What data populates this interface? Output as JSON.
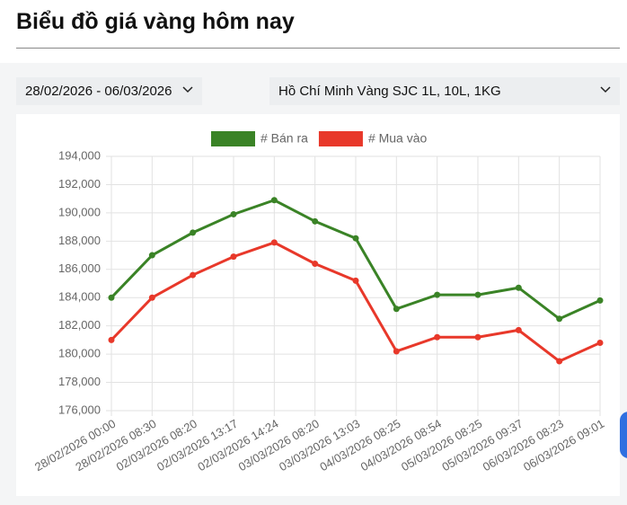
{
  "header": {
    "title": "Biểu đồ giá vàng hôm nay"
  },
  "filters": {
    "date_range": "28/02/2026 - 06/03/2026",
    "product": "Hồ Chí Minh Vàng SJC 1L, 10L, 1KG"
  },
  "chart_data": {
    "type": "line",
    "categories": [
      "28/02/2026 00:00",
      "28/02/2026 08:30",
      "02/03/2026 08:20",
      "02/03/2026 13:17",
      "02/03/2026 14:24",
      "03/03/2026 08:20",
      "03/03/2026 13:03",
      "04/03/2026 08:25",
      "04/03/2026 08:54",
      "05/03/2026 08:25",
      "05/03/2026 09:37",
      "06/03/2026 08:23",
      "06/03/2026 09:01"
    ],
    "series": [
      {
        "name": "# Bán ra",
        "color": "#3a8326",
        "values": [
          184000,
          187000,
          188600,
          189900,
          190900,
          189400,
          188200,
          183200,
          184200,
          184200,
          184700,
          182500,
          183800
        ]
      },
      {
        "name": "# Mua vào",
        "color": "#e8382a",
        "values": [
          181000,
          184000,
          185600,
          186900,
          187900,
          186400,
          185200,
          180200,
          181200,
          181200,
          181700,
          179500,
          180800
        ]
      }
    ],
    "ylim": [
      176000,
      194000
    ],
    "yticks": [
      {
        "value": 176000,
        "label": "176,000"
      },
      {
        "value": 178000,
        "label": "178,000"
      },
      {
        "value": 180000,
        "label": "180,000"
      },
      {
        "value": 182000,
        "label": "182,000"
      },
      {
        "value": 184000,
        "label": "184,000"
      },
      {
        "value": 186000,
        "label": "186,000"
      },
      {
        "value": 188000,
        "label": "188,000"
      },
      {
        "value": 190000,
        "label": "190,000"
      },
      {
        "value": 192000,
        "label": "192,000"
      },
      {
        "value": 194000,
        "label": "194,000"
      }
    ],
    "grid": true,
    "legend": "top"
  }
}
